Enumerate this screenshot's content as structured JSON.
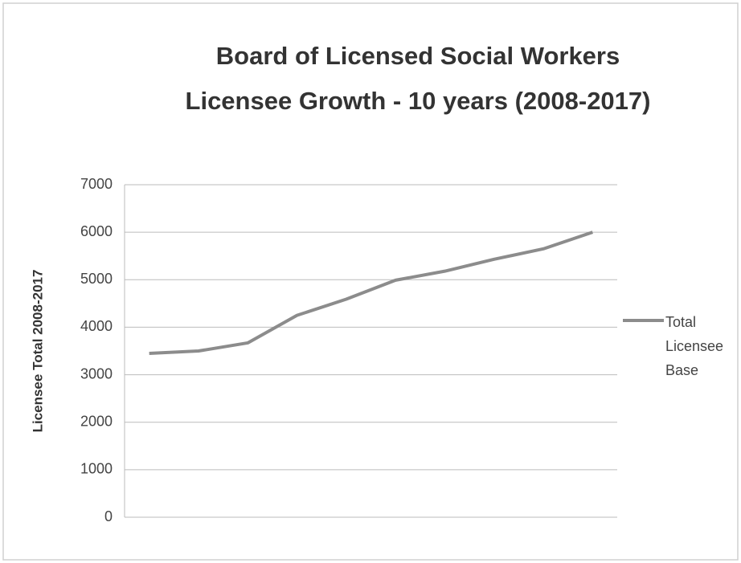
{
  "chart_data": {
    "type": "line",
    "title": "Board of Licensed Social Workers Licensee Growth - 10 years (2008-2017)",
    "y_label": "Licensee Total 2008-2017",
    "categories": [
      null,
      null,
      null,
      null,
      null,
      null,
      null,
      null,
      null,
      null
    ],
    "series": [
      {
        "name": "Total Licensee Base",
        "color": "#8c8c8c",
        "values": [
          3450,
          3500,
          3670,
          4250,
          4590,
          4990,
          5180,
          5430,
          5650,
          6000
        ]
      }
    ],
    "ylim": [
      0,
      7000
    ],
    "yticks": [
      0,
      1000,
      2000,
      3000,
      4000,
      5000,
      6000,
      7000
    ],
    "grid": true,
    "legend": "right"
  }
}
